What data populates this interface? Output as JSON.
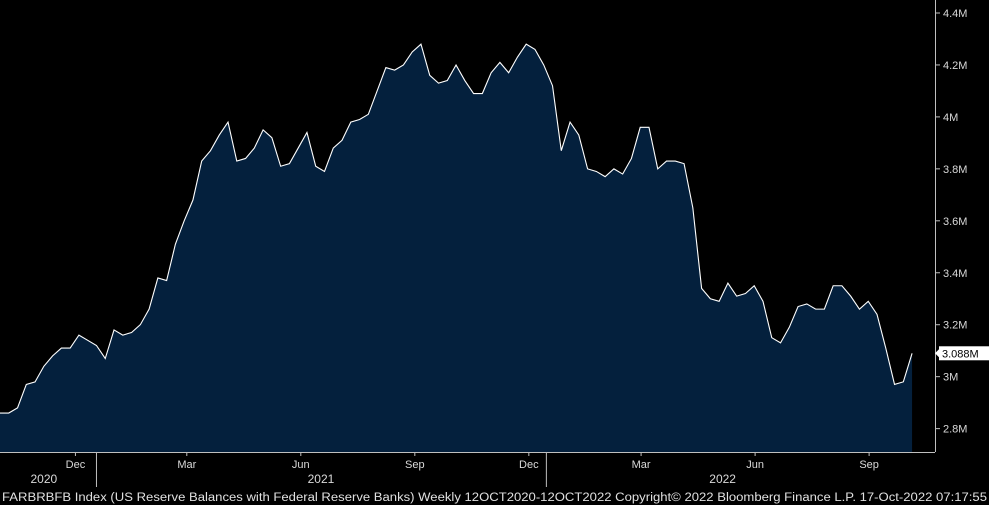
{
  "chart_data": {
    "type": "area",
    "ticker": "FARBRBFB Index",
    "description": "(US Reserve Balances with Federal Reserve Banks)",
    "frequency": "Weekly",
    "date_range": "12OCT2020-12OCT2022",
    "copyright": "Copyright© 2022 Bloomberg Finance L.P.",
    "timestamp": "17-Oct-2022 07:17:55",
    "last_value_label": "3.088M",
    "ylim": [
      2.71,
      4.45
    ],
    "y_ticks": [
      {
        "value": 2.8,
        "label": "2.8M"
      },
      {
        "value": 3.0,
        "label": "3M"
      },
      {
        "value": 3.2,
        "label": "3.2M"
      },
      {
        "value": 3.4,
        "label": "3.4M"
      },
      {
        "value": 3.6,
        "label": "3.6M"
      },
      {
        "value": 3.8,
        "label": "3.8M"
      },
      {
        "value": 4.0,
        "label": "4M"
      },
      {
        "value": 4.2,
        "label": "4.2M"
      },
      {
        "value": 4.4,
        "label": "4.4M"
      }
    ],
    "x_ticks": [
      {
        "index": 8.6,
        "label": "Dec"
      },
      {
        "index": 21.3,
        "label": "Mar"
      },
      {
        "index": 34.3,
        "label": "Jun"
      },
      {
        "index": 47.3,
        "label": "Sep"
      },
      {
        "index": 60.3,
        "label": "Dec"
      },
      {
        "index": 73.1,
        "label": "Mar"
      },
      {
        "index": 86.1,
        "label": "Jun"
      },
      {
        "index": 99.1,
        "label": "Sep"
      }
    ],
    "year_labels": [
      {
        "index": 5.0,
        "label": "2020"
      },
      {
        "index": 36.6,
        "label": "2021"
      },
      {
        "index": 82.4,
        "label": "2022"
      }
    ],
    "year_dividers": [
      11.0,
      62.3
    ],
    "values": [
      2.86,
      2.86,
      2.88,
      2.97,
      2.98,
      3.04,
      3.08,
      3.11,
      3.11,
      3.16,
      3.14,
      3.12,
      3.07,
      3.18,
      3.16,
      3.17,
      3.2,
      3.26,
      3.38,
      3.37,
      3.51,
      3.6,
      3.68,
      3.83,
      3.87,
      3.93,
      3.98,
      3.83,
      3.84,
      3.88,
      3.95,
      3.92,
      3.81,
      3.82,
      3.88,
      3.94,
      3.81,
      3.79,
      3.88,
      3.91,
      3.98,
      3.99,
      4.01,
      4.1,
      4.19,
      4.18,
      4.2,
      4.25,
      4.28,
      4.16,
      4.13,
      4.14,
      4.2,
      4.14,
      4.09,
      4.09,
      4.17,
      4.21,
      4.17,
      4.23,
      4.28,
      4.26,
      4.2,
      4.12,
      3.87,
      3.98,
      3.93,
      3.8,
      3.79,
      3.77,
      3.8,
      3.78,
      3.84,
      3.96,
      3.96,
      3.8,
      3.83,
      3.83,
      3.82,
      3.65,
      3.34,
      3.3,
      3.29,
      3.36,
      3.31,
      3.32,
      3.35,
      3.29,
      3.15,
      3.13,
      3.19,
      3.27,
      3.28,
      3.26,
      3.26,
      3.35,
      3.35,
      3.31,
      3.26,
      3.29,
      3.24,
      3.11,
      2.97,
      2.98,
      3.09
    ]
  }
}
